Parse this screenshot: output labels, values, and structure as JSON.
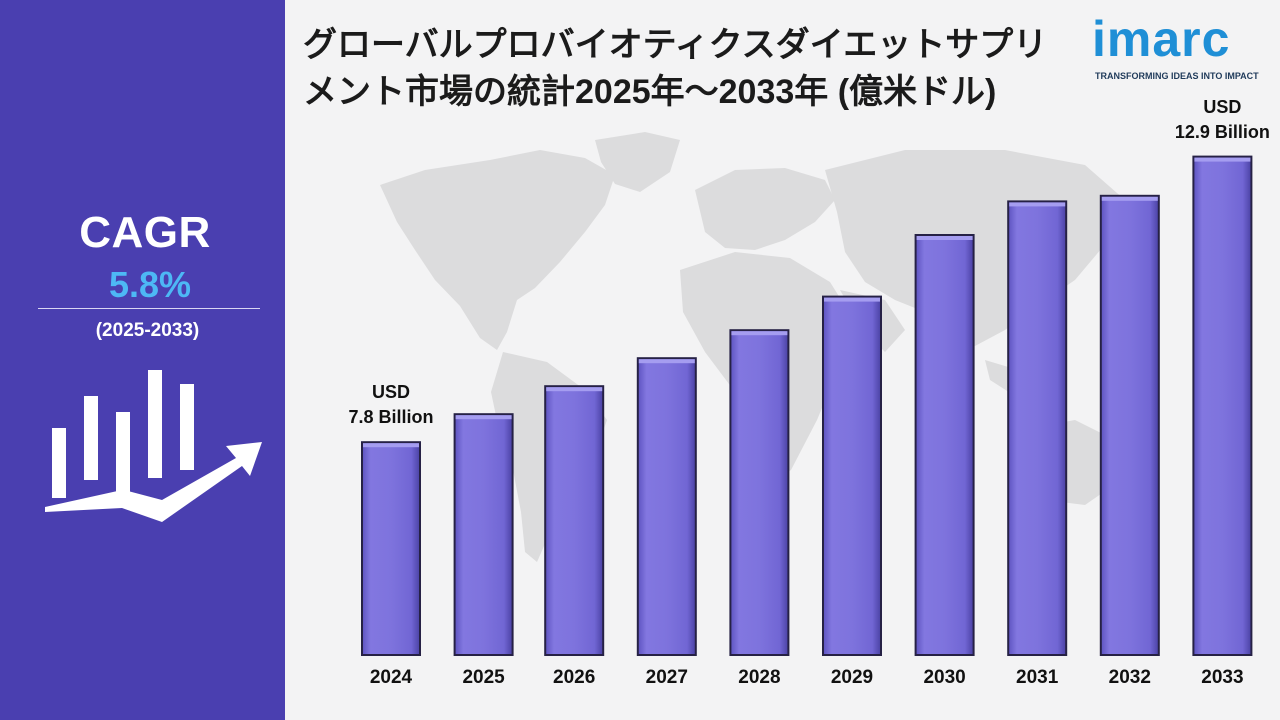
{
  "cagr": {
    "label": "CAGR",
    "value": "5.8%",
    "period": "(2025-2033)"
  },
  "logo": {
    "wordmark": "imarc",
    "tagline": "TRANSFORMING IDEAS INTO IMPACT"
  },
  "colors": {
    "left_panel": "#4a3fb0",
    "cagr_value": "#4db8f5",
    "bar_fill": "#7d72dc",
    "bar_edge": "#262145",
    "map": "#dcdcdd"
  },
  "chart_data": {
    "type": "bar",
    "title": "グローバルプロバイオティクスダイエットサプリメント市場の統計2025年～2033年 (億米ドル)",
    "categories": [
      "2024",
      "2025",
      "2026",
      "2027",
      "2028",
      "2029",
      "2030",
      "2031",
      "2032",
      "2033"
    ],
    "values": [
      7.8,
      8.3,
      8.8,
      9.3,
      9.8,
      10.4,
      11.5,
      12.1,
      12.2,
      12.9
    ],
    "annotations": [
      {
        "category": "2024",
        "line1": "USD",
        "line2": "7.8 Billion"
      },
      {
        "category": "2033",
        "line1": "USD",
        "line2": "12.9 Billion"
      }
    ],
    "xlabel": "",
    "ylabel": "",
    "ylim": [
      0,
      14
    ],
    "grid": false
  }
}
